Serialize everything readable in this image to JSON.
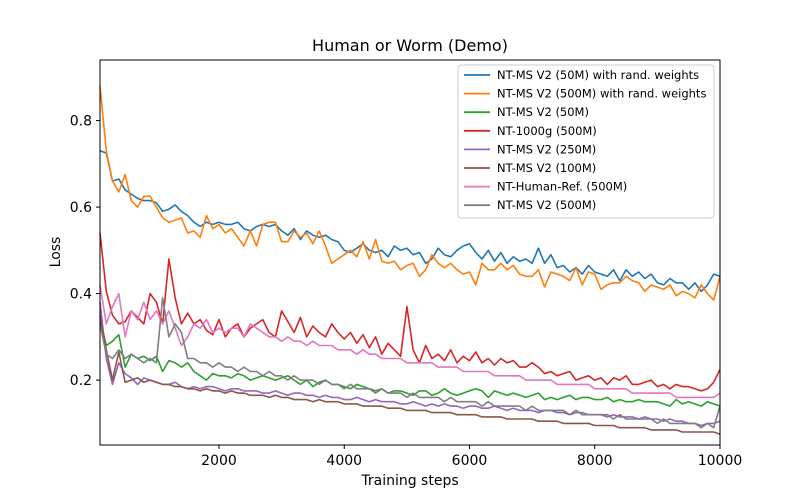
{
  "chart_data": {
    "type": "line",
    "title": "Human or Worm (Demo)",
    "xlabel": "Training steps",
    "ylabel": "Loss",
    "xlim": [
      100,
      10000
    ],
    "ylim": [
      0.05,
      0.94
    ],
    "xticks": [
      2000,
      4000,
      6000,
      8000,
      10000
    ],
    "yticks": [
      0.2,
      0.4,
      0.6,
      0.8
    ],
    "grid": false,
    "legend_position": "top-right",
    "x": [
      100,
      200,
      300,
      400,
      500,
      600,
      700,
      800,
      900,
      1000,
      1100,
      1200,
      1300,
      1400,
      1500,
      1600,
      1700,
      1800,
      1900,
      2000,
      2100,
      2200,
      2300,
      2400,
      2500,
      2600,
      2700,
      2800,
      2900,
      3000,
      3100,
      3200,
      3300,
      3400,
      3500,
      3600,
      3700,
      3800,
      3900,
      4000,
      4100,
      4200,
      4300,
      4400,
      4500,
      4600,
      4700,
      4800,
      4900,
      5000,
      5100,
      5200,
      5300,
      5400,
      5500,
      5600,
      5700,
      5800,
      5900,
      6000,
      6100,
      6200,
      6300,
      6400,
      6500,
      6600,
      6700,
      6800,
      6900,
      7000,
      7100,
      7200,
      7300,
      7400,
      7500,
      7600,
      7700,
      7800,
      7900,
      8000,
      8100,
      8200,
      8300,
      8400,
      8500,
      8600,
      8700,
      8800,
      8900,
      9000,
      9100,
      9200,
      9300,
      9400,
      9500,
      9600,
      9700,
      9800,
      9900,
      10000
    ],
    "series": [
      {
        "name": "NT-MS V2 (50M) with rand. weights",
        "color": "#1f77b4",
        "values": [
          0.73,
          0.725,
          0.66,
          0.665,
          0.64,
          0.63,
          0.62,
          0.615,
          0.615,
          0.61,
          0.59,
          0.595,
          0.605,
          0.59,
          0.58,
          0.565,
          0.555,
          0.565,
          0.56,
          0.565,
          0.56,
          0.56,
          0.565,
          0.55,
          0.545,
          0.555,
          0.56,
          0.555,
          0.56,
          0.545,
          0.535,
          0.55,
          0.525,
          0.545,
          0.535,
          0.53,
          0.535,
          0.525,
          0.52,
          0.5,
          0.495,
          0.505,
          0.515,
          0.5,
          0.495,
          0.5,
          0.485,
          0.51,
          0.5,
          0.505,
          0.49,
          0.495,
          0.47,
          0.48,
          0.505,
          0.49,
          0.485,
          0.5,
          0.51,
          0.515,
          0.495,
          0.48,
          0.5,
          0.475,
          0.495,
          0.47,
          0.485,
          0.475,
          0.48,
          0.47,
          0.505,
          0.47,
          0.49,
          0.46,
          0.465,
          0.45,
          0.46,
          0.445,
          0.465,
          0.45,
          0.445,
          0.44,
          0.455,
          0.43,
          0.455,
          0.44,
          0.45,
          0.435,
          0.445,
          0.425,
          0.42,
          0.435,
          0.425,
          0.425,
          0.41,
          0.425,
          0.405,
          0.42,
          0.445,
          0.44
        ]
      },
      {
        "name": "NT-MS V2 (500M) with rand. weights",
        "color": "#ff7f0e",
        "values": [
          0.88,
          0.73,
          0.66,
          0.635,
          0.675,
          0.615,
          0.6,
          0.625,
          0.625,
          0.6,
          0.575,
          0.565,
          0.57,
          0.575,
          0.54,
          0.545,
          0.53,
          0.58,
          0.55,
          0.56,
          0.54,
          0.55,
          0.53,
          0.51,
          0.545,
          0.51,
          0.56,
          0.565,
          0.565,
          0.52,
          0.52,
          0.545,
          0.53,
          0.54,
          0.515,
          0.545,
          0.51,
          0.47,
          0.48,
          0.49,
          0.5,
          0.485,
          0.52,
          0.48,
          0.525,
          0.475,
          0.47,
          0.475,
          0.455,
          0.465,
          0.47,
          0.44,
          0.455,
          0.49,
          0.47,
          0.46,
          0.47,
          0.455,
          0.445,
          0.45,
          0.42,
          0.47,
          0.455,
          0.455,
          0.47,
          0.455,
          0.465,
          0.445,
          0.44,
          0.44,
          0.455,
          0.415,
          0.45,
          0.445,
          0.44,
          0.43,
          0.46,
          0.42,
          0.45,
          0.445,
          0.41,
          0.42,
          0.425,
          0.425,
          0.44,
          0.43,
          0.425,
          0.405,
          0.42,
          0.415,
          0.41,
          0.42,
          0.395,
          0.405,
          0.4,
          0.39,
          0.42,
          0.4,
          0.385,
          0.44
        ]
      },
      {
        "name": "NT-MS V2 (50M)",
        "color": "#2ca02c",
        "values": [
          0.34,
          0.28,
          0.29,
          0.305,
          0.23,
          0.26,
          0.25,
          0.255,
          0.245,
          0.255,
          0.22,
          0.245,
          0.24,
          0.23,
          0.24,
          0.22,
          0.21,
          0.2,
          0.215,
          0.21,
          0.21,
          0.205,
          0.215,
          0.21,
          0.2,
          0.205,
          0.21,
          0.205,
          0.2,
          0.205,
          0.21,
          0.2,
          0.19,
          0.2,
          0.185,
          0.195,
          0.2,
          0.19,
          0.19,
          0.185,
          0.18,
          0.19,
          0.185,
          0.18,
          0.175,
          0.18,
          0.17,
          0.175,
          0.175,
          0.17,
          0.165,
          0.175,
          0.175,
          0.165,
          0.17,
          0.18,
          0.17,
          0.165,
          0.17,
          0.175,
          0.18,
          0.175,
          0.16,
          0.175,
          0.17,
          0.165,
          0.17,
          0.165,
          0.16,
          0.165,
          0.17,
          0.155,
          0.16,
          0.155,
          0.16,
          0.165,
          0.155,
          0.16,
          0.16,
          0.155,
          0.155,
          0.16,
          0.15,
          0.155,
          0.15,
          0.15,
          0.155,
          0.15,
          0.15,
          0.15,
          0.145,
          0.14,
          0.155,
          0.145,
          0.15,
          0.145,
          0.14,
          0.15,
          0.145,
          0.14
        ]
      },
      {
        "name": "NT-1000g (500M)",
        "color": "#d62728",
        "values": [
          0.54,
          0.405,
          0.35,
          0.33,
          0.335,
          0.36,
          0.345,
          0.33,
          0.4,
          0.38,
          0.33,
          0.48,
          0.39,
          0.33,
          0.355,
          0.33,
          0.34,
          0.315,
          0.305,
          0.34,
          0.3,
          0.32,
          0.33,
          0.3,
          0.32,
          0.33,
          0.34,
          0.31,
          0.3,
          0.36,
          0.335,
          0.31,
          0.345,
          0.3,
          0.325,
          0.31,
          0.3,
          0.33,
          0.31,
          0.295,
          0.31,
          0.285,
          0.305,
          0.275,
          0.3,
          0.26,
          0.285,
          0.27,
          0.255,
          0.37,
          0.27,
          0.24,
          0.28,
          0.25,
          0.26,
          0.245,
          0.27,
          0.24,
          0.255,
          0.245,
          0.265,
          0.24,
          0.25,
          0.235,
          0.25,
          0.24,
          0.245,
          0.23,
          0.23,
          0.24,
          0.23,
          0.215,
          0.22,
          0.21,
          0.215,
          0.22,
          0.2,
          0.205,
          0.21,
          0.2,
          0.205,
          0.19,
          0.205,
          0.2,
          0.21,
          0.19,
          0.19,
          0.195,
          0.2,
          0.185,
          0.19,
          0.18,
          0.19,
          0.185,
          0.185,
          0.18,
          0.175,
          0.18,
          0.195,
          0.225
        ]
      },
      {
        "name": "NT-MS V2 (250M)",
        "color": "#9467bd",
        "values": [
          0.38,
          0.25,
          0.19,
          0.24,
          0.215,
          0.205,
          0.19,
          0.205,
          0.2,
          0.195,
          0.19,
          0.19,
          0.195,
          0.185,
          0.18,
          0.185,
          0.18,
          0.185,
          0.185,
          0.18,
          0.175,
          0.18,
          0.18,
          0.175,
          0.175,
          0.175,
          0.17,
          0.17,
          0.175,
          0.17,
          0.165,
          0.17,
          0.17,
          0.165,
          0.165,
          0.16,
          0.165,
          0.16,
          0.16,
          0.155,
          0.155,
          0.16,
          0.155,
          0.15,
          0.155,
          0.15,
          0.15,
          0.15,
          0.145,
          0.145,
          0.15,
          0.145,
          0.14,
          0.145,
          0.14,
          0.145,
          0.14,
          0.14,
          0.135,
          0.14,
          0.14,
          0.135,
          0.135,
          0.14,
          0.135,
          0.13,
          0.135,
          0.13,
          0.13,
          0.13,
          0.125,
          0.13,
          0.13,
          0.125,
          0.125,
          0.12,
          0.125,
          0.125,
          0.12,
          0.12,
          0.12,
          0.115,
          0.12,
          0.115,
          0.115,
          0.115,
          0.11,
          0.115,
          0.11,
          0.11,
          0.105,
          0.11,
          0.105,
          0.105,
          0.1,
          0.1,
          0.095,
          0.1,
          0.1,
          0.105
        ]
      },
      {
        "name": "NT-MS V2 (100M)",
        "color": "#8c564b",
        "values": [
          0.35,
          0.27,
          0.2,
          0.265,
          0.195,
          0.2,
          0.205,
          0.195,
          0.2,
          0.195,
          0.19,
          0.19,
          0.185,
          0.185,
          0.18,
          0.18,
          0.175,
          0.18,
          0.175,
          0.175,
          0.17,
          0.175,
          0.17,
          0.17,
          0.165,
          0.165,
          0.165,
          0.16,
          0.165,
          0.16,
          0.16,
          0.155,
          0.155,
          0.155,
          0.15,
          0.155,
          0.15,
          0.15,
          0.15,
          0.145,
          0.145,
          0.145,
          0.14,
          0.14,
          0.14,
          0.14,
          0.135,
          0.135,
          0.135,
          0.13,
          0.13,
          0.13,
          0.13,
          0.125,
          0.125,
          0.125,
          0.125,
          0.12,
          0.12,
          0.12,
          0.12,
          0.115,
          0.115,
          0.115,
          0.115,
          0.11,
          0.11,
          0.11,
          0.11,
          0.11,
          0.105,
          0.105,
          0.105,
          0.105,
          0.1,
          0.1,
          0.1,
          0.1,
          0.1,
          0.095,
          0.095,
          0.095,
          0.095,
          0.09,
          0.09,
          0.09,
          0.09,
          0.09,
          0.085,
          0.085,
          0.085,
          0.085,
          0.085,
          0.08,
          0.08,
          0.08,
          0.08,
          0.08,
          0.08,
          0.075
        ]
      },
      {
        "name": "NT-Human-Ref. (500M)",
        "color": "#e377c2",
        "values": [
          0.42,
          0.33,
          0.37,
          0.4,
          0.3,
          0.36,
          0.34,
          0.38,
          0.34,
          0.36,
          0.33,
          0.36,
          0.32,
          0.28,
          0.3,
          0.33,
          0.32,
          0.34,
          0.31,
          0.32,
          0.31,
          0.32,
          0.32,
          0.3,
          0.33,
          0.32,
          0.31,
          0.3,
          0.3,
          0.29,
          0.3,
          0.29,
          0.29,
          0.28,
          0.29,
          0.28,
          0.28,
          0.28,
          0.27,
          0.27,
          0.27,
          0.26,
          0.27,
          0.26,
          0.26,
          0.25,
          0.25,
          0.25,
          0.25,
          0.24,
          0.24,
          0.24,
          0.24,
          0.24,
          0.23,
          0.23,
          0.23,
          0.23,
          0.22,
          0.22,
          0.22,
          0.22,
          0.22,
          0.21,
          0.21,
          0.21,
          0.21,
          0.21,
          0.2,
          0.2,
          0.2,
          0.2,
          0.2,
          0.19,
          0.19,
          0.19,
          0.19,
          0.19,
          0.19,
          0.18,
          0.18,
          0.18,
          0.18,
          0.18,
          0.18,
          0.17,
          0.17,
          0.17,
          0.17,
          0.17,
          0.17,
          0.17,
          0.16,
          0.16,
          0.16,
          0.16,
          0.16,
          0.16,
          0.16,
          0.17
        ]
      },
      {
        "name": "NT-MS V2 (500M)",
        "color": "#7f7f7f",
        "values": [
          0.33,
          0.26,
          0.25,
          0.27,
          0.25,
          0.26,
          0.25,
          0.24,
          0.25,
          0.24,
          0.39,
          0.3,
          0.33,
          0.31,
          0.25,
          0.25,
          0.24,
          0.24,
          0.23,
          0.24,
          0.23,
          0.23,
          0.22,
          0.23,
          0.22,
          0.22,
          0.21,
          0.22,
          0.21,
          0.21,
          0.2,
          0.21,
          0.2,
          0.2,
          0.2,
          0.19,
          0.2,
          0.19,
          0.19,
          0.18,
          0.19,
          0.18,
          0.18,
          0.18,
          0.17,
          0.18,
          0.17,
          0.17,
          0.17,
          0.16,
          0.17,
          0.16,
          0.16,
          0.16,
          0.16,
          0.15,
          0.16,
          0.15,
          0.15,
          0.15,
          0.15,
          0.14,
          0.15,
          0.14,
          0.14,
          0.14,
          0.14,
          0.14,
          0.13,
          0.14,
          0.13,
          0.13,
          0.13,
          0.13,
          0.13,
          0.12,
          0.13,
          0.12,
          0.12,
          0.12,
          0.12,
          0.12,
          0.11,
          0.12,
          0.11,
          0.11,
          0.11,
          0.11,
          0.11,
          0.1,
          0.11,
          0.1,
          0.1,
          0.1,
          0.1,
          0.1,
          0.09,
          0.1,
          0.09,
          0.14
        ]
      }
    ]
  }
}
